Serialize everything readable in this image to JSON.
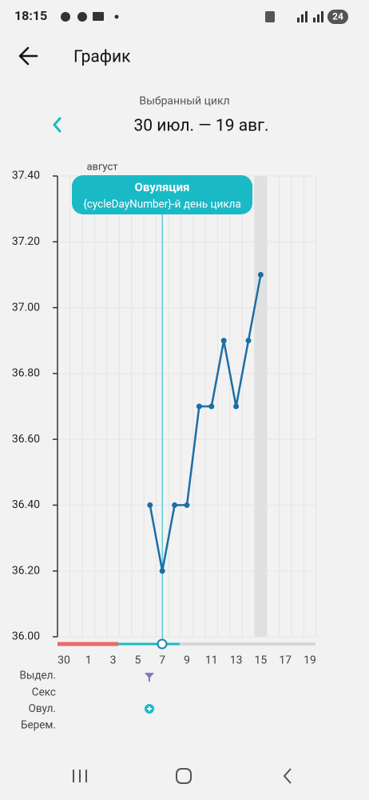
{
  "status_bar": {
    "time": "18:15",
    "battery": "24"
  },
  "header": {
    "title": "График"
  },
  "cycle": {
    "label": "Выбранный цикл",
    "range": "30 июл. — 19 авг."
  },
  "chart_data": {
    "type": "line",
    "month_label": "август",
    "tooltip": {
      "title": "Овуляция",
      "subtitle": "{cycleDayNumber}-й день цикла"
    },
    "ovulation_category": "7",
    "highlight_category": "15",
    "categories": [
      "30",
      null,
      "1",
      null,
      "3",
      null,
      "5",
      null,
      "7",
      null,
      "9",
      null,
      "11",
      null,
      "13",
      null,
      "15",
      null,
      "17",
      null,
      "19"
    ],
    "series": [
      {
        "name": null,
        "color": "#1b6ea6",
        "values": [
          null,
          null,
          null,
          null,
          null,
          null,
          null,
          36.4,
          36.2,
          36.4,
          36.4,
          36.7,
          36.7,
          36.9,
          36.7,
          36.9,
          37.1,
          null,
          null,
          null,
          null
        ]
      }
    ],
    "ylim": [
      36.0,
      37.4
    ],
    "yticks": [
      {
        "value": 36.0,
        "label": "36.00"
      },
      {
        "value": 36.2,
        "label": "36.20"
      },
      {
        "value": 36.4,
        "label": "36.40"
      },
      {
        "value": 36.6,
        "label": "36.60"
      },
      {
        "value": 36.8,
        "label": "36.80"
      },
      {
        "value": 37.0,
        "label": "37.00"
      },
      {
        "value": 37.2,
        "label": "37.20"
      },
      {
        "value": 37.4,
        "label": "37.40"
      }
    ],
    "grid": true,
    "accent_color": "#1ab9c6"
  },
  "rows": [
    "Выдел.",
    "Секс",
    "Овул.",
    "Берем."
  ]
}
